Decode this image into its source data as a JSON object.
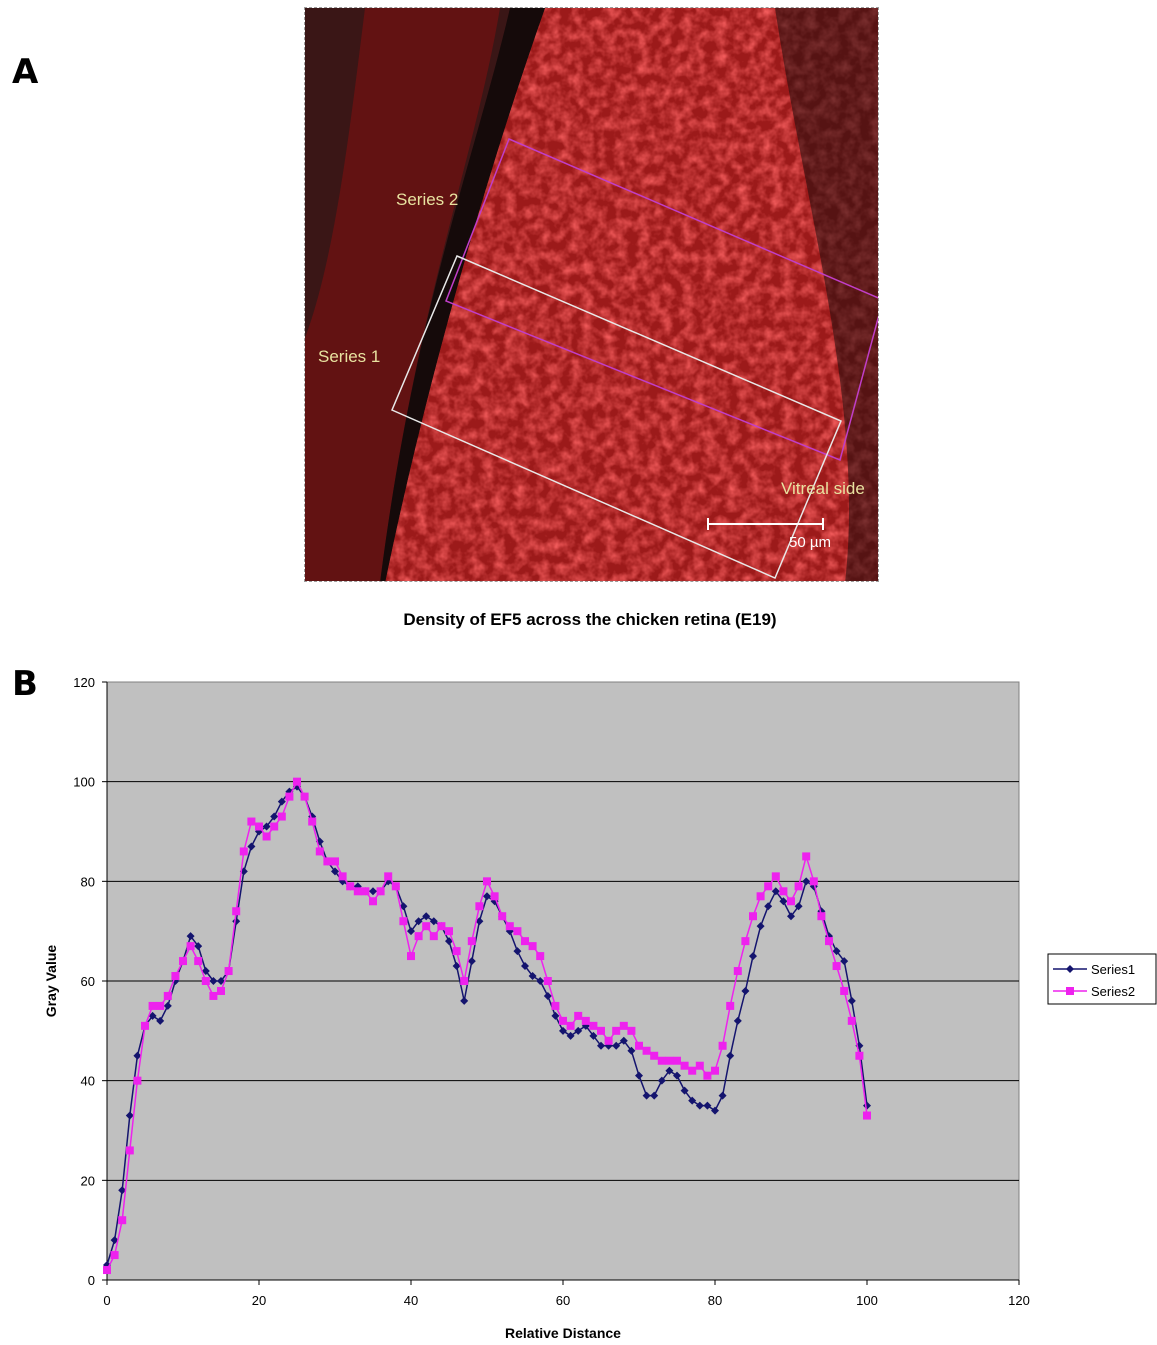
{
  "panels": {
    "a_letter": "A",
    "b_letter": "B"
  },
  "micrograph": {
    "series2_label": "Series 2",
    "series1_label": "Series 1",
    "vitreal_label": "Vitreal side",
    "scale_label": "50 µm"
  },
  "colors": {
    "series1": "#14146e",
    "series2": "#ee22ee",
    "plot_bg": "#c0c0c0"
  },
  "chart_data": {
    "type": "line",
    "title": "Density of EF5 across the chicken retina (E19)",
    "xlabel": "Relative Distance",
    "ylabel": "Gray Value",
    "xlim": [
      0,
      120
    ],
    "ylim": [
      0,
      120
    ],
    "xticks": [
      0,
      20,
      40,
      60,
      80,
      100,
      120
    ],
    "yticks": [
      0,
      20,
      40,
      60,
      80,
      100,
      120
    ],
    "grid": "horizontal",
    "legend": "right",
    "series": [
      {
        "name": "Series1",
        "marker": "diamond",
        "points": [
          [
            0,
            3
          ],
          [
            1,
            8
          ],
          [
            2,
            18
          ],
          [
            3,
            33
          ],
          [
            4,
            45
          ],
          [
            5,
            51
          ],
          [
            6,
            53
          ],
          [
            7,
            52
          ],
          [
            8,
            55
          ],
          [
            9,
            60
          ],
          [
            10,
            64
          ],
          [
            11,
            69
          ],
          [
            12,
            67
          ],
          [
            13,
            62
          ],
          [
            14,
            60
          ],
          [
            15,
            60
          ],
          [
            16,
            62
          ],
          [
            17,
            72
          ],
          [
            18,
            82
          ],
          [
            19,
            87
          ],
          [
            20,
            90
          ],
          [
            21,
            91
          ],
          [
            22,
            93
          ],
          [
            23,
            96
          ],
          [
            24,
            98
          ],
          [
            25,
            99
          ],
          [
            26,
            97
          ],
          [
            27,
            93
          ],
          [
            28,
            88
          ],
          [
            29,
            84
          ],
          [
            30,
            82
          ],
          [
            31,
            80
          ],
          [
            32,
            79
          ],
          [
            33,
            79
          ],
          [
            34,
            78
          ],
          [
            35,
            78
          ],
          [
            36,
            78
          ],
          [
            37,
            80
          ],
          [
            38,
            79
          ],
          [
            39,
            75
          ],
          [
            40,
            70
          ],
          [
            41,
            72
          ],
          [
            42,
            73
          ],
          [
            43,
            72
          ],
          [
            44,
            71
          ],
          [
            45,
            68
          ],
          [
            46,
            63
          ],
          [
            47,
            56
          ],
          [
            48,
            64
          ],
          [
            49,
            72
          ],
          [
            50,
            77
          ],
          [
            51,
            76
          ],
          [
            52,
            73
          ],
          [
            53,
            70
          ],
          [
            54,
            66
          ],
          [
            55,
            63
          ],
          [
            56,
            61
          ],
          [
            57,
            60
          ],
          [
            58,
            57
          ],
          [
            59,
            53
          ],
          [
            60,
            50
          ],
          [
            61,
            49
          ],
          [
            62,
            50
          ],
          [
            63,
            51
          ],
          [
            64,
            49
          ],
          [
            65,
            47
          ],
          [
            66,
            47
          ],
          [
            67,
            47
          ],
          [
            68,
            48
          ],
          [
            69,
            46
          ],
          [
            70,
            41
          ],
          [
            71,
            37
          ],
          [
            72,
            37
          ],
          [
            73,
            40
          ],
          [
            74,
            42
          ],
          [
            75,
            41
          ],
          [
            76,
            38
          ],
          [
            77,
            36
          ],
          [
            78,
            35
          ],
          [
            79,
            35
          ],
          [
            80,
            34
          ],
          [
            81,
            37
          ],
          [
            82,
            45
          ],
          [
            83,
            52
          ],
          [
            84,
            58
          ],
          [
            85,
            65
          ],
          [
            86,
            71
          ],
          [
            87,
            75
          ],
          [
            88,
            78
          ],
          [
            89,
            76
          ],
          [
            90,
            73
          ],
          [
            91,
            75
          ],
          [
            92,
            80
          ],
          [
            93,
            79
          ],
          [
            94,
            74
          ],
          [
            95,
            69
          ],
          [
            96,
            66
          ],
          [
            97,
            64
          ],
          [
            98,
            56
          ],
          [
            99,
            47
          ],
          [
            100,
            35
          ]
        ]
      },
      {
        "name": "Series2",
        "marker": "square",
        "points": [
          [
            0,
            2
          ],
          [
            1,
            5
          ],
          [
            2,
            12
          ],
          [
            3,
            26
          ],
          [
            4,
            40
          ],
          [
            5,
            51
          ],
          [
            6,
            55
          ],
          [
            7,
            55
          ],
          [
            8,
            57
          ],
          [
            9,
            61
          ],
          [
            10,
            64
          ],
          [
            11,
            67
          ],
          [
            12,
            64
          ],
          [
            13,
            60
          ],
          [
            14,
            57
          ],
          [
            15,
            58
          ],
          [
            16,
            62
          ],
          [
            17,
            74
          ],
          [
            18,
            86
          ],
          [
            19,
            92
          ],
          [
            20,
            91
          ],
          [
            21,
            89
          ],
          [
            22,
            91
          ],
          [
            23,
            93
          ],
          [
            24,
            97
          ],
          [
            25,
            100
          ],
          [
            26,
            97
          ],
          [
            27,
            92
          ],
          [
            28,
            86
          ],
          [
            29,
            84
          ],
          [
            30,
            84
          ],
          [
            31,
            81
          ],
          [
            32,
            79
          ],
          [
            33,
            78
          ],
          [
            34,
            78
          ],
          [
            35,
            76
          ],
          [
            36,
            78
          ],
          [
            37,
            81
          ],
          [
            38,
            79
          ],
          [
            39,
            72
          ],
          [
            40,
            65
          ],
          [
            41,
            69
          ],
          [
            42,
            71
          ],
          [
            43,
            69
          ],
          [
            44,
            71
          ],
          [
            45,
            70
          ],
          [
            46,
            66
          ],
          [
            47,
            60
          ],
          [
            48,
            68
          ],
          [
            49,
            75
          ],
          [
            50,
            80
          ],
          [
            51,
            77
          ],
          [
            52,
            73
          ],
          [
            53,
            71
          ],
          [
            54,
            70
          ],
          [
            55,
            68
          ],
          [
            56,
            67
          ],
          [
            57,
            65
          ],
          [
            58,
            60
          ],
          [
            59,
            55
          ],
          [
            60,
            52
          ],
          [
            61,
            51
          ],
          [
            62,
            53
          ],
          [
            63,
            52
          ],
          [
            64,
            51
          ],
          [
            65,
            50
          ],
          [
            66,
            48
          ],
          [
            67,
            50
          ],
          [
            68,
            51
          ],
          [
            69,
            50
          ],
          [
            70,
            47
          ],
          [
            71,
            46
          ],
          [
            72,
            45
          ],
          [
            73,
            44
          ],
          [
            74,
            44
          ],
          [
            75,
            44
          ],
          [
            76,
            43
          ],
          [
            77,
            42
          ],
          [
            78,
            43
          ],
          [
            79,
            41
          ],
          [
            80,
            42
          ],
          [
            81,
            47
          ],
          [
            82,
            55
          ],
          [
            83,
            62
          ],
          [
            84,
            68
          ],
          [
            85,
            73
          ],
          [
            86,
            77
          ],
          [
            87,
            79
          ],
          [
            88,
            81
          ],
          [
            89,
            78
          ],
          [
            90,
            76
          ],
          [
            91,
            79
          ],
          [
            92,
            85
          ],
          [
            93,
            80
          ],
          [
            94,
            73
          ],
          [
            95,
            68
          ],
          [
            96,
            63
          ],
          [
            97,
            58
          ],
          [
            98,
            52
          ],
          [
            99,
            45
          ],
          [
            100,
            33
          ]
        ]
      }
    ]
  }
}
